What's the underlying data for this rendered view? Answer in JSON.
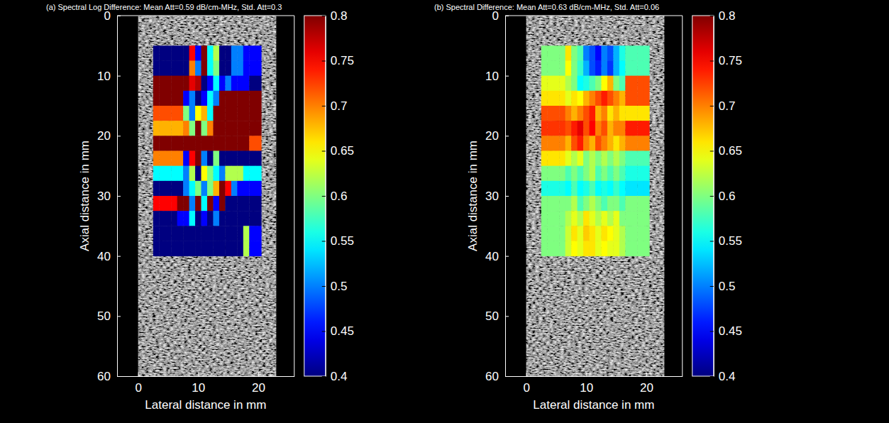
{
  "chart_data": [
    {
      "type": "heatmap",
      "title": "(a) Spectral Log Difference: Mean Att=0.59 dB/cm-MHz, Std. Att=0.3",
      "x_label": "Lateral distance in mm",
      "y_label": "Axial distance in mm",
      "xlim": [
        -3.5,
        26
      ],
      "ylim": [
        60,
        0
      ],
      "xticks": [
        0,
        10,
        20
      ],
      "yticks": [
        0,
        10,
        20,
        30,
        40,
        50,
        60
      ],
      "bmode_image": {
        "x": [
          0,
          23
        ],
        "y": [
          0,
          60
        ]
      },
      "colorbar": {
        "range": [
          0.4,
          0.8
        ],
        "ticks": [
          0.4,
          0.45,
          0.5,
          0.55,
          0.6,
          0.65,
          0.7,
          0.75,
          0.8
        ]
      },
      "cells": {
        "x_edges": [
          2.5,
          3.5,
          4.5,
          5.5,
          6.5,
          7.5,
          8.5,
          9.5,
          10.5,
          11.5,
          12.5,
          13.5,
          14.5,
          15.5,
          16.5,
          17.5,
          18.5,
          19.5,
          20.5
        ],
        "y_edges": [
          5,
          7.5,
          10,
          12.5,
          15,
          17.5,
          20,
          22.5,
          25,
          27.5,
          30,
          32.5,
          35,
          37.5,
          40
        ],
        "values": [
          [
            0.3,
            0.3,
            0.3,
            0.3,
            0.3,
            0.3,
            0.75,
            0.45,
            0.9,
            0.55,
            0.62,
            0.35,
            0.3,
            0.5,
            0.5,
            0.45,
            0.45,
            0.45
          ],
          [
            0.3,
            0.3,
            0.3,
            0.3,
            0.3,
            0.3,
            0.7,
            0.5,
            0.9,
            0.55,
            0.6,
            0.35,
            0.3,
            0.5,
            0.5,
            0.45,
            0.45,
            0.45
          ],
          [
            0.9,
            0.9,
            0.9,
            0.9,
            0.9,
            0.9,
            0.76,
            0.78,
            0.3,
            0.45,
            0.55,
            0.45,
            0.5,
            0.45,
            0.45,
            0.45,
            0.3,
            0.3
          ],
          [
            0.9,
            0.9,
            0.9,
            0.9,
            0.9,
            0.45,
            0.5,
            0.3,
            0.45,
            0.55,
            0.5,
            0.9,
            0.9,
            0.9,
            0.9,
            0.9,
            0.9,
            0.9
          ],
          [
            0.72,
            0.72,
            0.72,
            0.72,
            0.72,
            0.6,
            0.5,
            0.65,
            0.68,
            0.55,
            0.9,
            0.9,
            0.9,
            0.9,
            0.9,
            0.9,
            0.9,
            0.9
          ],
          [
            0.68,
            0.68,
            0.68,
            0.68,
            0.68,
            0.7,
            0.6,
            0.9,
            0.6,
            0.7,
            0.9,
            0.9,
            0.9,
            0.9,
            0.9,
            0.9,
            0.9,
            0.9
          ],
          [
            0.9,
            0.9,
            0.9,
            0.9,
            0.9,
            0.9,
            0.9,
            0.9,
            0.9,
            0.9,
            0.9,
            0.9,
            0.9,
            0.9,
            0.9,
            0.9,
            0.72,
            0.72
          ],
          [
            0.7,
            0.7,
            0.7,
            0.7,
            0.7,
            0.45,
            0.75,
            0.9,
            0.5,
            0.3,
            0.6,
            0.35,
            0.3,
            0.3,
            0.3,
            0.3,
            0.3,
            0.3
          ],
          [
            0.55,
            0.55,
            0.55,
            0.55,
            0.55,
            0.5,
            0.62,
            0.3,
            0.65,
            0.6,
            0.55,
            0.5,
            0.62,
            0.62,
            0.62,
            0.55,
            0.55,
            0.55
          ],
          [
            0.3,
            0.3,
            0.3,
            0.3,
            0.35,
            0.5,
            0.55,
            0.6,
            0.5,
            0.6,
            0.68,
            0.9,
            0.75,
            0.5,
            0.45,
            0.45,
            0.45,
            0.45
          ],
          [
            0.75,
            0.75,
            0.75,
            0.75,
            0.9,
            0.9,
            0.5,
            0.9,
            0.55,
            0.9,
            0.45,
            0.9,
            0.4,
            0.3,
            0.3,
            0.3,
            0.3,
            0.3
          ],
          [
            0.3,
            0.3,
            0.3,
            0.3,
            0.45,
            0.45,
            0.55,
            0.4,
            0.45,
            0.3,
            0.5,
            0.3,
            0.3,
            0.3,
            0.3,
            0.3,
            0.3,
            0.3
          ],
          [
            0.3,
            0.3,
            0.3,
            0.3,
            0.3,
            0.3,
            0.3,
            0.3,
            0.3,
            0.3,
            0.3,
            0.3,
            0.3,
            0.3,
            0.3,
            0.62,
            0.45,
            0.45
          ],
          [
            0.3,
            0.3,
            0.3,
            0.3,
            0.3,
            0.3,
            0.3,
            0.3,
            0.3,
            0.3,
            0.3,
            0.3,
            0.3,
            0.3,
            0.3,
            0.62,
            0.45,
            0.45
          ]
        ]
      }
    },
    {
      "type": "heatmap",
      "title": "(b) Spectral Difference: Mean Att=0.63 dB/cm-MHz, Std. Att=0.06",
      "x_label": "Lateral distance in mm",
      "y_label": "Axial distance in mm",
      "xlim": [
        -3.5,
        26
      ],
      "ylim": [
        60,
        0
      ],
      "xticks": [
        0,
        10,
        20
      ],
      "yticks": [
        0,
        10,
        20,
        30,
        40,
        50,
        60
      ],
      "bmode_image": {
        "x": [
          0,
          23
        ],
        "y": [
          0,
          60
        ]
      },
      "colorbar": {
        "range": [
          0.4,
          0.8
        ],
        "ticks": [
          0.4,
          0.45,
          0.5,
          0.55,
          0.6,
          0.65,
          0.7,
          0.75,
          0.8
        ]
      },
      "cells": {
        "x_edges": [
          2.5,
          3.5,
          4.5,
          5.5,
          6.5,
          7.5,
          8.5,
          9.5,
          10.5,
          11.5,
          12.5,
          13.5,
          14.5,
          15.5,
          16.5,
          17.5,
          18.5,
          19.5,
          20.5
        ],
        "y_edges": [
          5,
          7.5,
          10,
          12.5,
          15,
          17.5,
          20,
          22.5,
          25,
          27.5,
          30,
          32.5,
          35,
          37.5,
          40
        ],
        "values": [
          [
            0.6,
            0.6,
            0.6,
            0.6,
            0.66,
            0.6,
            0.58,
            0.5,
            0.48,
            0.45,
            0.5,
            0.48,
            0.52,
            0.56,
            0.58,
            0.58,
            0.58,
            0.58
          ],
          [
            0.6,
            0.6,
            0.6,
            0.6,
            0.65,
            0.6,
            0.57,
            0.52,
            0.48,
            0.46,
            0.5,
            0.47,
            0.52,
            0.55,
            0.58,
            0.58,
            0.58,
            0.58
          ],
          [
            0.64,
            0.64,
            0.64,
            0.64,
            0.62,
            0.6,
            0.55,
            0.56,
            0.58,
            0.6,
            0.65,
            0.68,
            0.6,
            0.58,
            0.72,
            0.72,
            0.72,
            0.72
          ],
          [
            0.66,
            0.66,
            0.66,
            0.66,
            0.64,
            0.66,
            0.65,
            0.68,
            0.7,
            0.72,
            0.74,
            0.72,
            0.7,
            0.68,
            0.72,
            0.72,
            0.72,
            0.72
          ],
          [
            0.72,
            0.72,
            0.72,
            0.72,
            0.7,
            0.68,
            0.7,
            0.72,
            0.74,
            0.68,
            0.7,
            0.66,
            0.68,
            0.66,
            0.66,
            0.66,
            0.66,
            0.66
          ],
          [
            0.73,
            0.73,
            0.73,
            0.73,
            0.72,
            0.74,
            0.76,
            0.72,
            0.75,
            0.7,
            0.72,
            0.68,
            0.7,
            0.7,
            0.74,
            0.74,
            0.74,
            0.74
          ],
          [
            0.7,
            0.7,
            0.7,
            0.7,
            0.68,
            0.72,
            0.74,
            0.7,
            0.68,
            0.72,
            0.7,
            0.68,
            0.66,
            0.68,
            0.7,
            0.7,
            0.7,
            0.7
          ],
          [
            0.66,
            0.66,
            0.66,
            0.66,
            0.64,
            0.62,
            0.64,
            0.6,
            0.62,
            0.6,
            0.62,
            0.6,
            0.62,
            0.6,
            0.58,
            0.58,
            0.58,
            0.58
          ],
          [
            0.6,
            0.6,
            0.6,
            0.6,
            0.58,
            0.6,
            0.58,
            0.6,
            0.62,
            0.58,
            0.6,
            0.58,
            0.6,
            0.58,
            0.56,
            0.56,
            0.56,
            0.56
          ],
          [
            0.56,
            0.56,
            0.56,
            0.56,
            0.55,
            0.58,
            0.55,
            0.56,
            0.58,
            0.55,
            0.56,
            0.55,
            0.57,
            0.55,
            0.54,
            0.54,
            0.54,
            0.54
          ],
          [
            0.6,
            0.6,
            0.6,
            0.6,
            0.6,
            0.62,
            0.58,
            0.6,
            0.62,
            0.6,
            0.58,
            0.6,
            0.6,
            0.58,
            0.6,
            0.6,
            0.6,
            0.6
          ],
          [
            0.6,
            0.6,
            0.6,
            0.6,
            0.62,
            0.64,
            0.62,
            0.66,
            0.64,
            0.62,
            0.64,
            0.62,
            0.64,
            0.6,
            0.6,
            0.6,
            0.6,
            0.6
          ],
          [
            0.6,
            0.6,
            0.6,
            0.6,
            0.63,
            0.66,
            0.64,
            0.67,
            0.66,
            0.64,
            0.66,
            0.65,
            0.64,
            0.62,
            0.6,
            0.6,
            0.6,
            0.6
          ],
          [
            0.6,
            0.6,
            0.6,
            0.6,
            0.63,
            0.65,
            0.64,
            0.66,
            0.66,
            0.64,
            0.65,
            0.64,
            0.64,
            0.62,
            0.6,
            0.6,
            0.6,
            0.6
          ]
        ]
      }
    }
  ]
}
